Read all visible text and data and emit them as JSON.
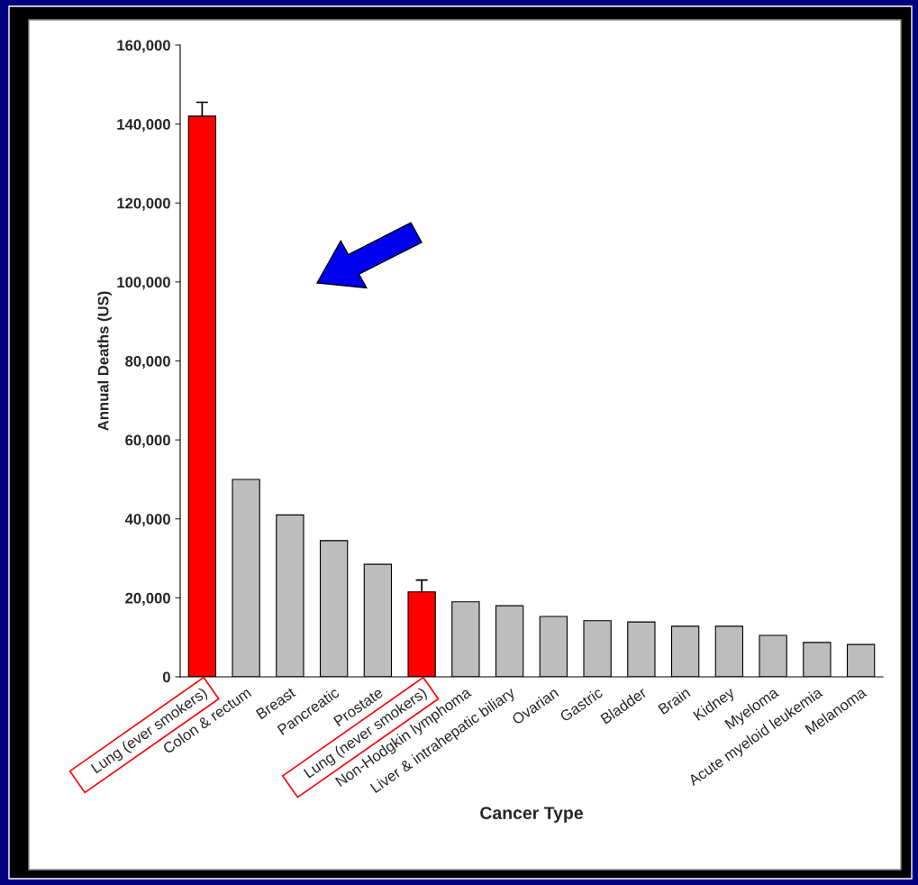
{
  "chart_data": {
    "type": "bar",
    "xlabel": "Cancer Type",
    "ylabel": "Annual Deaths (US)",
    "categories": [
      "Lung (ever smokers)",
      "Colon & rectum",
      "Breast",
      "Pancreatic",
      "Prostate",
      "Lung (never smokers)",
      "Non-Hodgkin lymphoma",
      "Liver & intrahepatic biliary",
      "Ovarian",
      "Gastric",
      "Bladder",
      "Brain",
      "Kidney",
      "Myeloma",
      "Acute myeloid leukemia",
      "Melanoma"
    ],
    "values": [
      142000,
      50000,
      41000,
      34500,
      28500,
      21500,
      19000,
      18000,
      15300,
      14200,
      13900,
      12800,
      12800,
      10500,
      8700,
      8200
    ],
    "colors": [
      "#ff0000",
      "#bdbdbd",
      "#bdbdbd",
      "#bdbdbd",
      "#bdbdbd",
      "#ff0000",
      "#bdbdbd",
      "#bdbdbd",
      "#bdbdbd",
      "#bdbdbd",
      "#bdbdbd",
      "#bdbdbd",
      "#bdbdbd",
      "#bdbdbd",
      "#bdbdbd",
      "#bdbdbd"
    ],
    "errors": [
      [
        142000,
        145500
      ],
      null,
      null,
      null,
      null,
      [
        21500,
        24500
      ],
      null,
      null,
      null,
      null,
      null,
      null,
      null,
      null,
      null,
      null
    ],
    "ylim": [
      0,
      160000
    ],
    "yticks": [
      {
        "value": 0,
        "label": "0"
      },
      {
        "value": 20000,
        "label": "20,000"
      },
      {
        "value": 40000,
        "label": "40,000"
      },
      {
        "value": 60000,
        "label": "60,000"
      },
      {
        "value": 80000,
        "label": "80,000"
      },
      {
        "value": 100000,
        "label": "100,000"
      },
      {
        "value": 120000,
        "label": "120,000"
      },
      {
        "value": 140000,
        "label": "140,000"
      },
      {
        "value": 160000,
        "label": "160,000"
      }
    ],
    "grid": false,
    "legend": false
  }
}
